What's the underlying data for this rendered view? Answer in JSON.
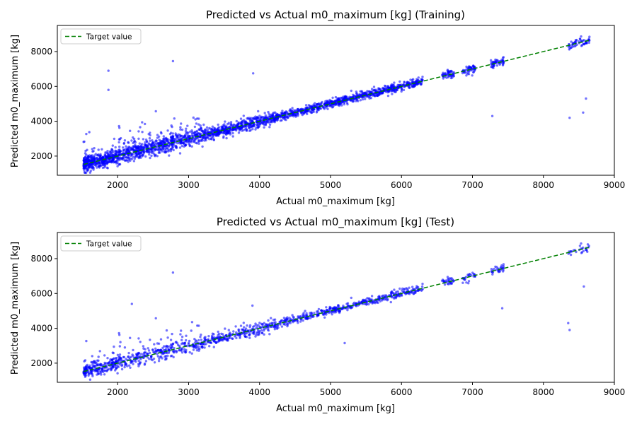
{
  "chart_data": [
    {
      "type": "scatter",
      "title": "Predicted vs Actual m0_maximum [kg] (Training)",
      "xlabel": "Actual m0_maximum [kg]",
      "ylabel": "Predicted m0_maximum [kg]",
      "xlim": [
        1150,
        9000
      ],
      "ylim": [
        900,
        9500
      ],
      "xticks": [
        2000,
        3000,
        4000,
        5000,
        6000,
        7000,
        8000,
        9000
      ],
      "yticks": [
        2000,
        4000,
        6000,
        8000
      ],
      "grid": false,
      "legend": {
        "position": "top-left",
        "entries": [
          "Target value"
        ]
      },
      "series": [
        {
          "kind": "points",
          "color": "#0000ff",
          "alpha": 0.55,
          "x_range": [
            1520,
            8650
          ],
          "clusters_x": [
            6650,
            6950,
            7350,
            8500
          ],
          "outliers": [
            [
              1870,
              6900
            ],
            [
              1870,
              5800
            ],
            [
              2780,
              7450
            ],
            [
              3910,
              6750
            ],
            [
              7280,
              4300
            ],
            [
              8370,
              4200
            ],
            [
              8560,
              4500
            ],
            [
              8600,
              5300
            ]
          ]
        },
        {
          "kind": "line",
          "color": "#008000",
          "style": "dashed",
          "x": [
            1520,
            8650
          ],
          "y": [
            1520,
            8650
          ]
        }
      ]
    },
    {
      "type": "scatter",
      "title": "Predicted vs Actual m0_maximum [kg] (Test)",
      "xlabel": "Actual m0_maximum [kg]",
      "ylabel": "Predicted m0_maximum [kg]",
      "xlim": [
        1150,
        9000
      ],
      "ylim": [
        900,
        9500
      ],
      "xticks": [
        2000,
        3000,
        4000,
        5000,
        6000,
        7000,
        8000,
        9000
      ],
      "yticks": [
        2000,
        4000,
        6000,
        8000
      ],
      "grid": false,
      "legend": {
        "position": "top-left",
        "entries": [
          "Target value"
        ]
      },
      "series": [
        {
          "kind": "points",
          "color": "#0000ff",
          "alpha": 0.55,
          "x_range": [
            1520,
            8650
          ],
          "clusters_x": [
            6650,
            6950,
            7350,
            8500
          ],
          "outliers": [
            [
              2780,
              7200
            ],
            [
              2200,
              5400
            ],
            [
              3900,
              5300
            ],
            [
              5200,
              3150
            ],
            [
              7420,
              5150
            ],
            [
              8350,
              4300
            ],
            [
              8370,
              3900
            ],
            [
              8570,
              6400
            ]
          ]
        },
        {
          "kind": "line",
          "color": "#008000",
          "style": "dashed",
          "x": [
            1520,
            8650
          ],
          "y": [
            1520,
            8650
          ]
        }
      ]
    }
  ]
}
